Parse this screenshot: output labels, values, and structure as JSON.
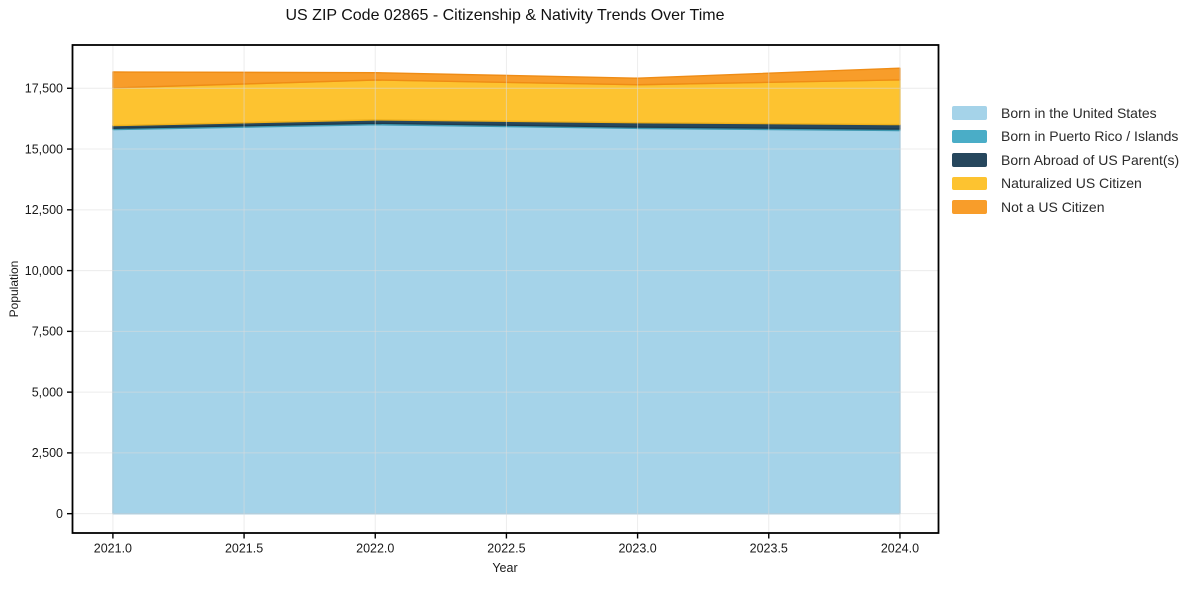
{
  "chart_data": {
    "type": "area",
    "stacked": true,
    "title": "US ZIP Code 02865 - Citizenship & Nativity Trends Over Time",
    "xlabel": "Year",
    "ylabel": "Population",
    "x": [
      2021,
      2022,
      2023,
      2024
    ],
    "series": [
      {
        "name": "Born in the United States",
        "color": "#a5d3e9",
        "edge": "#8fc2dc",
        "values": [
          15800,
          16000,
          15850,
          15760
        ]
      },
      {
        "name": "Born in Puerto Rico / Islands",
        "color": "#4aadc7",
        "edge": "#3e98b0",
        "values": [
          55,
          60,
          55,
          60
        ]
      },
      {
        "name": "Born Abroad of US Parent(s)",
        "color": "#26475d",
        "edge": "#1e3a4d",
        "values": [
          110,
          140,
          180,
          185
        ]
      },
      {
        "name": "Naturalized US Citizen",
        "color": "#fdc330",
        "edge": "#edb01c",
        "values": [
          1550,
          1640,
          1560,
          1840
        ]
      },
      {
        "name": "Not a US Citizen",
        "color": "#f89d2a",
        "edge": "#ef8c15",
        "values": [
          655,
          300,
          270,
          480
        ]
      }
    ],
    "totals_stacked_top": [
      18170,
      18140,
      17915,
      18325
    ],
    "xlim": [
      2020.846,
      2024.147
    ],
    "ylim": [
      -795,
      19280
    ],
    "xticks": {
      "values": [
        2021.0,
        2021.5,
        2022.0,
        2022.5,
        2023.0,
        2023.5,
        2024.0
      ],
      "labels": [
        "2021.0",
        "2021.5",
        "2022.0",
        "2022.5",
        "2023.0",
        "2023.5",
        "2024.0"
      ]
    },
    "yticks": {
      "values": [
        0,
        2500,
        5000,
        7500,
        10000,
        12500,
        15000,
        17500
      ],
      "labels": [
        "0",
        "2,500",
        "5,000",
        "7,500",
        "10,000",
        "12,500",
        "15,000",
        "17,500"
      ]
    },
    "grid": true,
    "legend_position": "right",
    "colors": {
      "spine": "#000000",
      "grid": "#dcdcdc",
      "tick_label": "#1a1a1a",
      "background": "#ffffff"
    }
  }
}
